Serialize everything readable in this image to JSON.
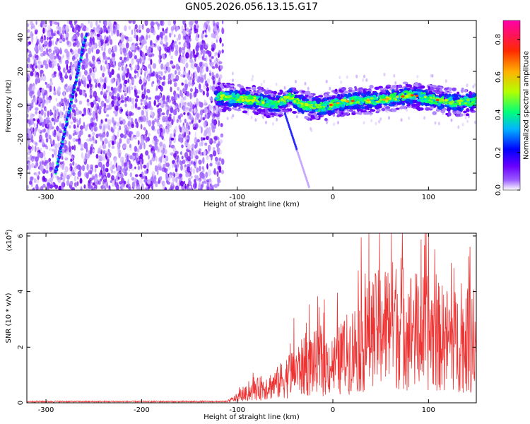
{
  "title": "GN05.2026.056.13.15.G17",
  "chart_data": [
    {
      "type": "heatmap",
      "name": "spectrogram",
      "xlabel": "Height of straight line (km)",
      "ylabel": "Frequency (Hz)",
      "xlim": [
        -320,
        150
      ],
      "ylim": [
        -50,
        50
      ],
      "xticks": [
        -300,
        -200,
        -100,
        0,
        100
      ],
      "yticks": [
        -40,
        -20,
        0,
        20,
        40
      ],
      "noise_region_x": [
        -320,
        -115
      ],
      "main_ridge": {
        "x": [
          -120,
          -100,
          -80,
          -60,
          -45,
          -30,
          -10,
          10,
          30,
          50,
          70,
          85,
          100,
          120,
          150
        ],
        "freq": [
          5,
          4,
          3,
          0,
          5,
          0,
          -1,
          2,
          3,
          3,
          5,
          6,
          4,
          2,
          2
        ]
      },
      "rising_streak": {
        "x": [
          -290,
          -258
        ],
        "freq": [
          -40,
          42
        ]
      },
      "falling_streak": {
        "x": [
          -50,
          -25
        ],
        "freq": [
          -5,
          -48
        ]
      },
      "colorbar": {
        "label": "Normalized spectral amplitude",
        "range": [
          0.0,
          0.9
        ],
        "ticks": [
          0.0,
          0.2,
          0.4,
          0.6,
          0.8
        ],
        "tick_labels": [
          "0.0",
          "0.2",
          "0.4",
          "0.6",
          "0.8"
        ],
        "colors": [
          "#ffffff",
          "#7b00ff",
          "#0000ff",
          "#00ccff",
          "#00ff66",
          "#ccff00",
          "#ffaa00",
          "#ff0000",
          "#ff00aa"
        ]
      }
    },
    {
      "type": "line",
      "name": "snr",
      "xlabel": "Height of straight line (km)",
      "ylabel": "SNR (10 * v/v)",
      "scale_label": "(x10",
      "scale_exp": "4",
      "scale_close": ")",
      "xlim": [
        -320,
        150
      ],
      "ylim": [
        0,
        6.1
      ],
      "xticks": [
        -300,
        -200,
        -100,
        0,
        100
      ],
      "yticks": [
        0,
        2,
        4,
        6
      ],
      "color": "#ee3333",
      "envelope": {
        "x": [
          -320,
          -110,
          -100,
          -80,
          -60,
          -40,
          -20,
          0,
          20,
          40,
          60,
          80,
          100,
          120,
          150
        ],
        "y": [
          0.05,
          0.05,
          0.2,
          0.5,
          0.7,
          1.2,
          1.5,
          1.4,
          2.0,
          2.6,
          3.0,
          2.8,
          2.6,
          2.4,
          2.2
        ]
      },
      "peaks": [
        {
          "x": 61,
          "y": 6.1
        },
        {
          "x": 73,
          "y": 4.8
        },
        {
          "x": 143,
          "y": 4.3
        },
        {
          "x": 89,
          "y": 4.2
        }
      ]
    }
  ]
}
